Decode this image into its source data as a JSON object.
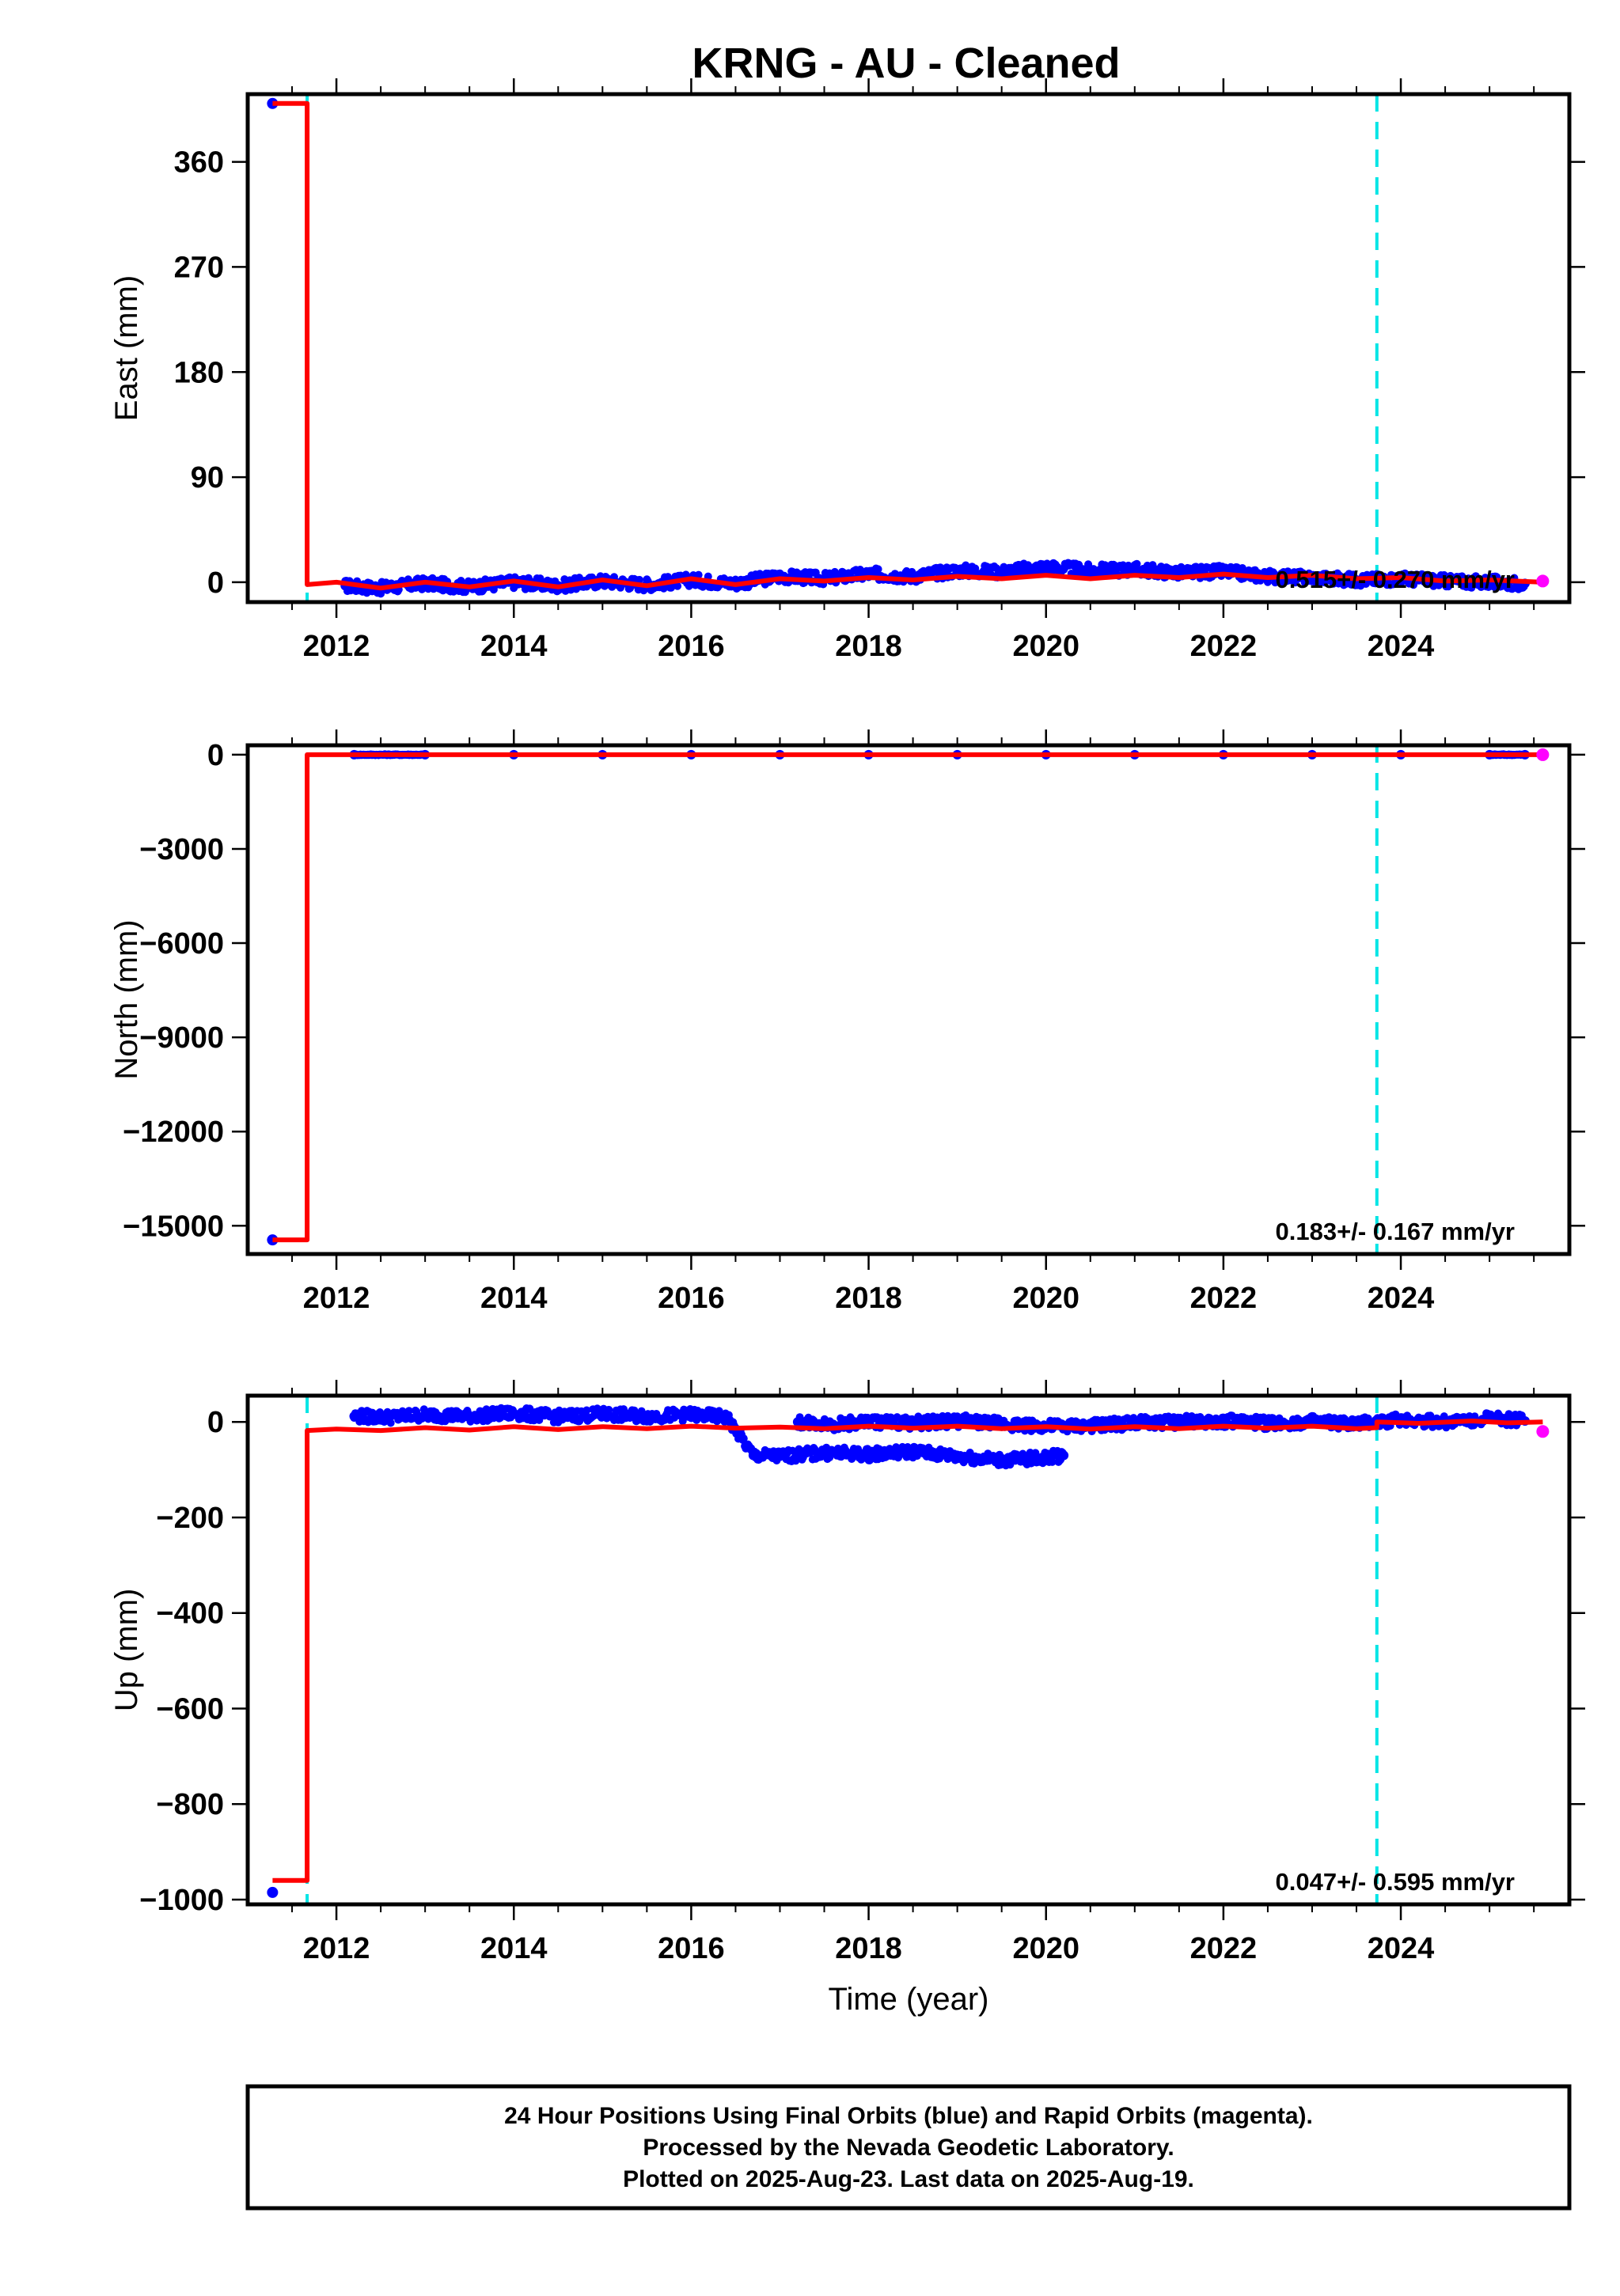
{
  "chart_data": [
    {
      "type": "scatter",
      "title": "KRNG  - AU - Cleaned",
      "xlabel": "",
      "ylabel": "East (mm)",
      "xlim": [
        2011.0,
        2025.9
      ],
      "ylim": [
        -17,
        418
      ],
      "yticks": [
        0,
        90,
        180,
        270,
        360
      ],
      "xticks": [
        2012,
        2014,
        2016,
        2018,
        2020,
        2022,
        2024
      ],
      "grid": false,
      "rate_label": "0.515+/- 0.270 mm/yr",
      "colors": {
        "final_orbits": "#0000ff",
        "rapid_orbits": "#ff00ff",
        "model": "#ff0000",
        "event": "#00e5e5"
      },
      "events": [
        2011.67,
        2023.73
      ],
      "outlier_points": [
        {
          "x": 2011.28,
          "y": 410
        }
      ],
      "final_orbit_points": [
        {
          "x": 2012.1,
          "y": -3
        },
        {
          "x": 2012.5,
          "y": -5
        },
        {
          "x": 2013.0,
          "y": -1
        },
        {
          "x": 2013.5,
          "y": -4
        },
        {
          "x": 2014.0,
          "y": 0
        },
        {
          "x": 2014.5,
          "y": -3
        },
        {
          "x": 2015.0,
          "y": 1
        },
        {
          "x": 2015.5,
          "y": -2
        },
        {
          "x": 2016.0,
          "y": 2
        },
        {
          "x": 2016.5,
          "y": -1
        },
        {
          "x": 2017.0,
          "y": 5
        },
        {
          "x": 2017.5,
          "y": 3
        },
        {
          "x": 2018.0,
          "y": 7
        },
        {
          "x": 2018.5,
          "y": 5
        },
        {
          "x": 2019.0,
          "y": 10
        },
        {
          "x": 2019.5,
          "y": 9
        },
        {
          "x": 2020.0,
          "y": 13
        },
        {
          "x": 2020.5,
          "y": 10
        },
        {
          "x": 2021.0,
          "y": 11
        },
        {
          "x": 2021.5,
          "y": 8
        },
        {
          "x": 2022.0,
          "y": 9
        },
        {
          "x": 2022.5,
          "y": 5
        },
        {
          "x": 2023.0,
          "y": 4
        },
        {
          "x": 2023.5,
          "y": 2
        },
        {
          "x": 2024.0,
          "y": 3
        },
        {
          "x": 2024.5,
          "y": 1
        },
        {
          "x": 2025.0,
          "y": 0
        },
        {
          "x": 2025.4,
          "y": -1
        }
      ],
      "rapid_orbit_points": [
        {
          "x": 2025.6,
          "y": 1
        }
      ],
      "model_line": [
        {
          "x": 2011.28,
          "y": 410
        },
        {
          "x": 2011.67,
          "y": 410
        },
        {
          "x": 2011.67,
          "y": -2
        },
        {
          "x": 2012.0,
          "y": 0
        },
        {
          "x": 2012.5,
          "y": -5
        },
        {
          "x": 2013.0,
          "y": 0
        },
        {
          "x": 2013.5,
          "y": -4
        },
        {
          "x": 2014.0,
          "y": 1
        },
        {
          "x": 2014.5,
          "y": -4
        },
        {
          "x": 2015.0,
          "y": 2
        },
        {
          "x": 2015.5,
          "y": -3
        },
        {
          "x": 2016.0,
          "y": 3
        },
        {
          "x": 2016.5,
          "y": -2
        },
        {
          "x": 2017.0,
          "y": 3
        },
        {
          "x": 2017.5,
          "y": 1
        },
        {
          "x": 2018.0,
          "y": 4
        },
        {
          "x": 2018.5,
          "y": 2
        },
        {
          "x": 2019.0,
          "y": 5
        },
        {
          "x": 2019.5,
          "y": 3
        },
        {
          "x": 2020.0,
          "y": 6
        },
        {
          "x": 2020.5,
          "y": 3
        },
        {
          "x": 2021.0,
          "y": 6
        },
        {
          "x": 2021.5,
          "y": 4
        },
        {
          "x": 2022.0,
          "y": 7
        },
        {
          "x": 2022.5,
          "y": 4
        },
        {
          "x": 2023.0,
          "y": 6
        },
        {
          "x": 2023.5,
          "y": 3
        },
        {
          "x": 2024.0,
          "y": 4
        },
        {
          "x": 2024.5,
          "y": 1
        },
        {
          "x": 2025.0,
          "y": 2
        },
        {
          "x": 2025.6,
          "y": 0
        }
      ]
    },
    {
      "type": "scatter",
      "title": "",
      "xlabel": "",
      "ylabel": "North (mm)",
      "xlim": [
        2011.0,
        2025.9
      ],
      "ylim": [
        -15900,
        300
      ],
      "yticks": [
        0,
        -3000,
        -6000,
        -9000,
        -12000,
        -15000
      ],
      "ytick_labels": [
        "0",
        "−3000",
        "−6000",
        "−9000",
        "−12000",
        "−15000"
      ],
      "xticks": [
        2012,
        2014,
        2016,
        2018,
        2020,
        2022,
        2024
      ],
      "grid": false,
      "rate_label": "0.183+/- 0.167 mm/yr",
      "events": [
        2023.73
      ],
      "outlier_points": [
        {
          "x": 2011.28,
          "y": -15450
        }
      ],
      "final_orbit_points": [
        {
          "x": 2012.2,
          "y": 0
        },
        {
          "x": 2013.0,
          "y": 0
        },
        {
          "x": 2014.0,
          "y": 0
        },
        {
          "x": 2015.0,
          "y": 0
        },
        {
          "x": 2016.0,
          "y": 0
        },
        {
          "x": 2017.0,
          "y": 0
        },
        {
          "x": 2018.0,
          "y": 0
        },
        {
          "x": 2019.0,
          "y": 0
        },
        {
          "x": 2020.0,
          "y": 0
        },
        {
          "x": 2021.0,
          "y": 0
        },
        {
          "x": 2022.0,
          "y": 0
        },
        {
          "x": 2023.0,
          "y": 0
        },
        {
          "x": 2024.0,
          "y": 0
        },
        {
          "x": 2025.0,
          "y": 0
        },
        {
          "x": 2025.4,
          "y": 0
        }
      ],
      "rapid_orbit_points": [
        {
          "x": 2025.6,
          "y": 0
        }
      ],
      "model_line": [
        {
          "x": 2011.28,
          "y": -15450
        },
        {
          "x": 2011.67,
          "y": -15450
        },
        {
          "x": 2011.67,
          "y": 0
        },
        {
          "x": 2025.6,
          "y": 0
        }
      ]
    },
    {
      "type": "scatter",
      "title": "",
      "xlabel": "Time (year)",
      "ylabel": "Up (mm)",
      "xlim": [
        2011.0,
        2025.9
      ],
      "ylim": [
        -1010,
        55
      ],
      "yticks": [
        0,
        -200,
        -400,
        -600,
        -800,
        -1000
      ],
      "ytick_labels": [
        "0",
        "−200",
        "−400",
        "−600",
        "−800",
        "−1000"
      ],
      "xticks": [
        2012,
        2014,
        2016,
        2018,
        2020,
        2022,
        2024
      ],
      "grid": false,
      "rate_label": "0.047+/- 0.595 mm/yr",
      "events": [
        2011.67,
        2023.73
      ],
      "outlier_points": [
        {
          "x": 2011.28,
          "y": -985
        }
      ],
      "final_orbit_points": [
        {
          "x": 2012.2,
          "y": 12
        },
        {
          "x": 2012.6,
          "y": 10
        },
        {
          "x": 2013.0,
          "y": 15
        },
        {
          "x": 2013.5,
          "y": 12
        },
        {
          "x": 2014.0,
          "y": 18
        },
        {
          "x": 2014.5,
          "y": 11
        },
        {
          "x": 2015.0,
          "y": 16
        },
        {
          "x": 2015.5,
          "y": 12
        },
        {
          "x": 2016.0,
          "y": 15
        },
        {
          "x": 2016.4,
          "y": 10
        },
        {
          "x": 2016.7,
          "y": -70
        },
        {
          "x": 2017.0,
          "y": -72
        },
        {
          "x": 2017.5,
          "y": -65
        },
        {
          "x": 2018.0,
          "y": -68
        },
        {
          "x": 2018.5,
          "y": -62
        },
        {
          "x": 2019.0,
          "y": -72
        },
        {
          "x": 2019.5,
          "y": -80
        },
        {
          "x": 2020.0,
          "y": -75
        },
        {
          "x": 2020.2,
          "y": -70
        },
        {
          "x": 2017.2,
          "y": 0
        },
        {
          "x": 2017.6,
          "y": -5
        },
        {
          "x": 2018.0,
          "y": 0
        },
        {
          "x": 2018.5,
          "y": -2
        },
        {
          "x": 2019.0,
          "y": 2
        },
        {
          "x": 2019.5,
          "y": -3
        },
        {
          "x": 2020.0,
          "y": -10
        },
        {
          "x": 2020.6,
          "y": -8
        },
        {
          "x": 2021.0,
          "y": -2
        },
        {
          "x": 2021.5,
          "y": 0
        },
        {
          "x": 2022.0,
          "y": 2
        },
        {
          "x": 2022.5,
          "y": -3
        },
        {
          "x": 2023.0,
          "y": 0
        },
        {
          "x": 2023.5,
          "y": -5
        },
        {
          "x": 2024.0,
          "y": 5
        },
        {
          "x": 2024.5,
          "y": 0
        },
        {
          "x": 2025.0,
          "y": 8
        },
        {
          "x": 2025.4,
          "y": 2
        }
      ],
      "rapid_orbit_points": [
        {
          "x": 2025.6,
          "y": -20
        }
      ],
      "model_line": [
        {
          "x": 2011.28,
          "y": -960
        },
        {
          "x": 2011.67,
          "y": -960
        },
        {
          "x": 2011.67,
          "y": -18
        },
        {
          "x": 2012.0,
          "y": -15
        },
        {
          "x": 2012.5,
          "y": -18
        },
        {
          "x": 2013.0,
          "y": -12
        },
        {
          "x": 2013.5,
          "y": -17
        },
        {
          "x": 2014.0,
          "y": -10
        },
        {
          "x": 2014.5,
          "y": -16
        },
        {
          "x": 2015.0,
          "y": -10
        },
        {
          "x": 2015.5,
          "y": -14
        },
        {
          "x": 2016.0,
          "y": -9
        },
        {
          "x": 2016.5,
          "y": -13
        },
        {
          "x": 2017.0,
          "y": -11
        },
        {
          "x": 2017.5,
          "y": -14
        },
        {
          "x": 2018.0,
          "y": -9
        },
        {
          "x": 2018.5,
          "y": -13
        },
        {
          "x": 2019.0,
          "y": -9
        },
        {
          "x": 2019.5,
          "y": -14
        },
        {
          "x": 2020.0,
          "y": -10
        },
        {
          "x": 2020.5,
          "y": -15
        },
        {
          "x": 2021.0,
          "y": -10
        },
        {
          "x": 2021.5,
          "y": -14
        },
        {
          "x": 2022.0,
          "y": -9
        },
        {
          "x": 2022.5,
          "y": -13
        },
        {
          "x": 2023.0,
          "y": -9
        },
        {
          "x": 2023.5,
          "y": -14
        },
        {
          "x": 2023.73,
          "y": -12
        },
        {
          "x": 2023.73,
          "y": 0
        },
        {
          "x": 2024.2,
          "y": -3
        },
        {
          "x": 2024.8,
          "y": 2
        },
        {
          "x": 2025.2,
          "y": -2
        },
        {
          "x": 2025.6,
          "y": 0
        }
      ]
    }
  ],
  "footer": {
    "line1": "24 Hour Positions Using Final Orbits (blue) and Rapid Orbits (magenta).",
    "line2": "Processed by the Nevada Geodetic Laboratory.",
    "line3": "Plotted on 2025-Aug-23. Last data on 2025-Aug-19."
  }
}
